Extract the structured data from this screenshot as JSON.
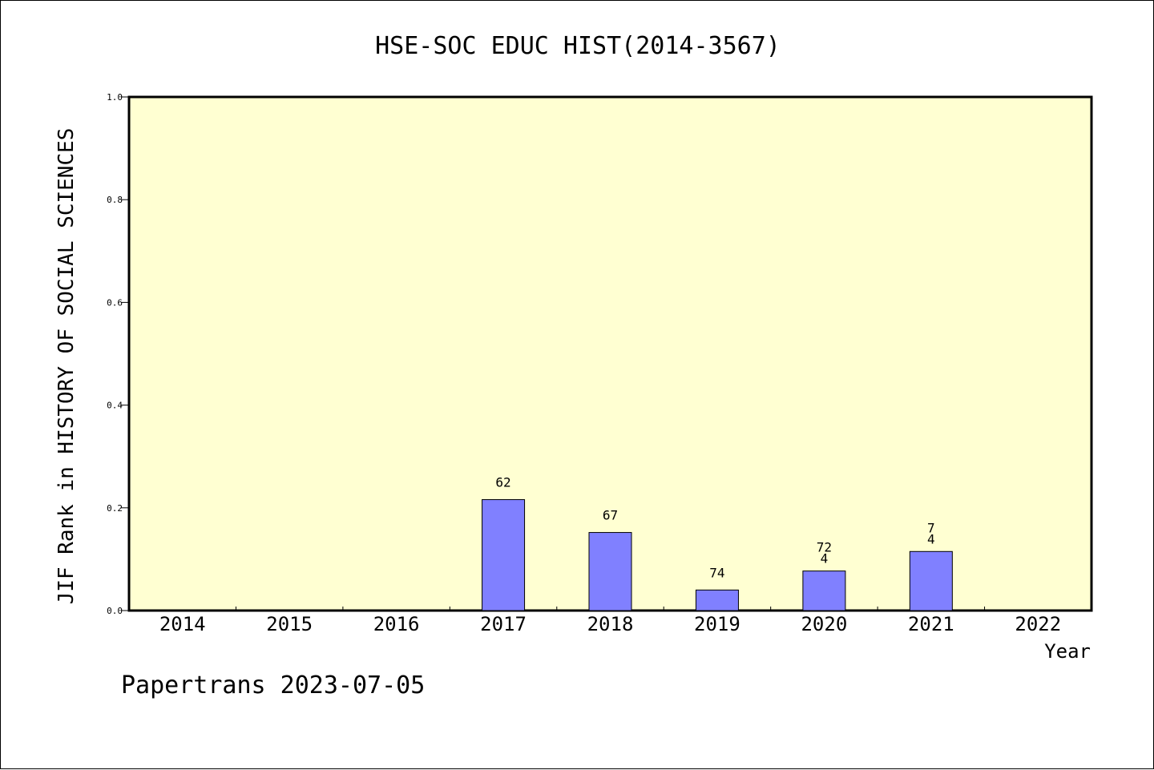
{
  "chart_data": {
    "type": "bar",
    "title": "HSE-SOC EDUC HIST(2014-3567)",
    "xlabel": "Year",
    "ylabel": "JIF Rank in HISTORY OF SOCIAL SCIENCES",
    "footer": "Papertrans 2023-07-05",
    "categories": [
      "2014",
      "2015",
      "2016",
      "2017",
      "2018",
      "2019",
      "2020",
      "2021",
      "2022"
    ],
    "values": [
      null,
      null,
      null,
      0.216,
      0.152,
      0.04,
      0.077,
      0.115,
      null
    ],
    "bar_labels": [
      [],
      [],
      [],
      [
        "62"
      ],
      [
        "67"
      ],
      [
        "74"
      ],
      [
        "72",
        "4"
      ],
      [
        "7",
        "4"
      ],
      []
    ],
    "ylim": [
      0,
      1.0
    ],
    "yticks": [
      "0.0",
      "0.2",
      "0.4",
      "0.6",
      "0.8",
      "1.0"
    ],
    "plot_background": "#ffffd2",
    "bar_color": "#8080ff",
    "grid": false,
    "legend": "none"
  }
}
